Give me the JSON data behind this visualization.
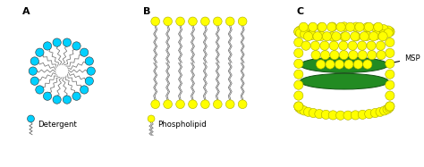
{
  "title_A": "A",
  "title_B": "B",
  "title_C": "C",
  "label_detergent": "Detergent",
  "label_phospholipid": "Phospholipid",
  "label_msp": "MSP",
  "cyan_color": "#00D0FF",
  "yellow_color": "#FFFF00",
  "yellow_edge": "#AAAA00",
  "green_belt": "#228B22",
  "green_belt_edge": "#145214",
  "tail_color": "#666666",
  "bg_color": "#FFFFFF",
  "fig_width": 4.74,
  "fig_height": 1.87,
  "dpi": 100
}
